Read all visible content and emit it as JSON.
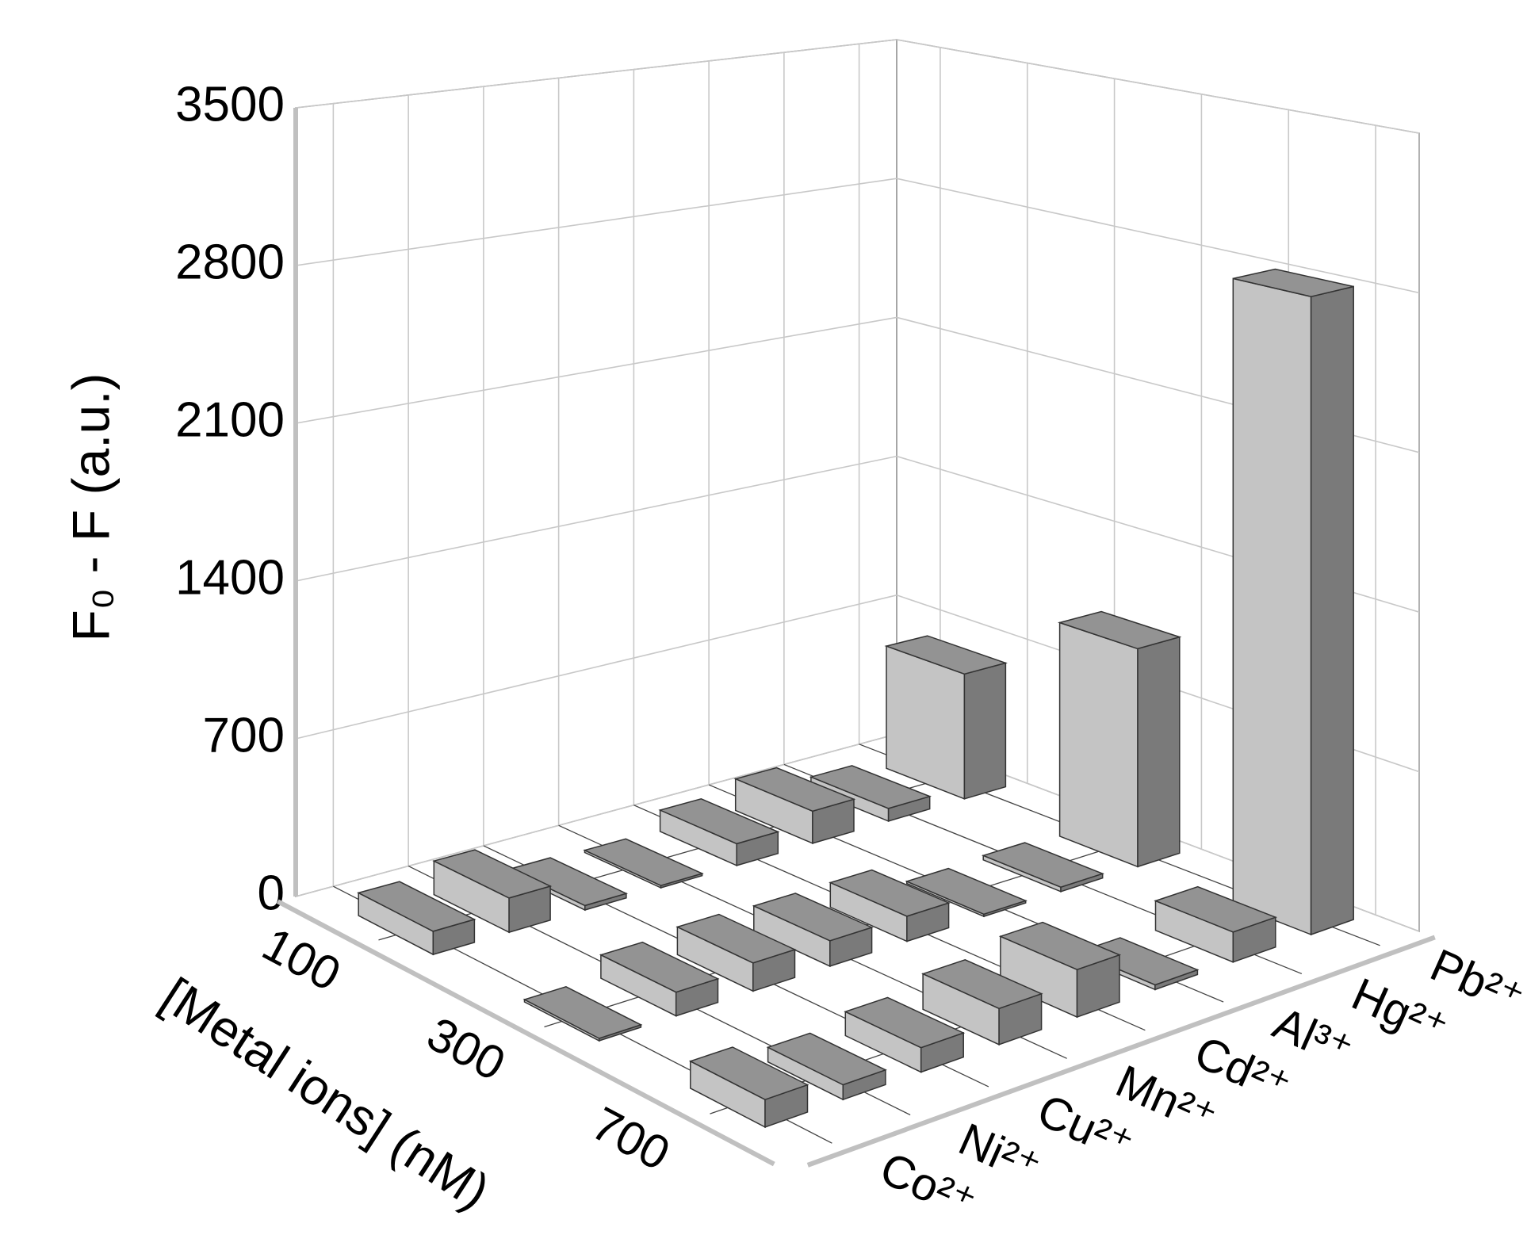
{
  "chart_data": {
    "type": "bar3d",
    "ylabel": "F₀ - F (a.u.)",
    "xlabel": "[Metal ions] (nM)",
    "categories": [
      "100",
      "300",
      "700"
    ],
    "series": [
      {
        "name": "Co²⁺",
        "values": [
          100,
          10,
          110
        ]
      },
      {
        "name": "Ni²⁺",
        "values": [
          150,
          100,
          60
        ]
      },
      {
        "name": "Cu²⁺",
        "values": [
          20,
          120,
          100
        ]
      },
      {
        "name": "Mn²⁺",
        "values": [
          10,
          110,
          150
        ]
      },
      {
        "name": "Cd²⁺",
        "values": [
          100,
          110,
          200
        ]
      },
      {
        "name": "Al³⁺",
        "values": [
          150,
          10,
          20
        ]
      },
      {
        "name": "Hg²⁺",
        "values": [
          60,
          20,
          130
        ]
      },
      {
        "name": "Pb²⁺",
        "values": [
          600,
          1000,
          2800
        ]
      }
    ],
    "color": "#c4c4c4",
    "ylim": [
      0,
      3500
    ],
    "yticks": [
      0,
      700,
      1400,
      2100,
      2800,
      3500
    ],
    "grid": true
  }
}
